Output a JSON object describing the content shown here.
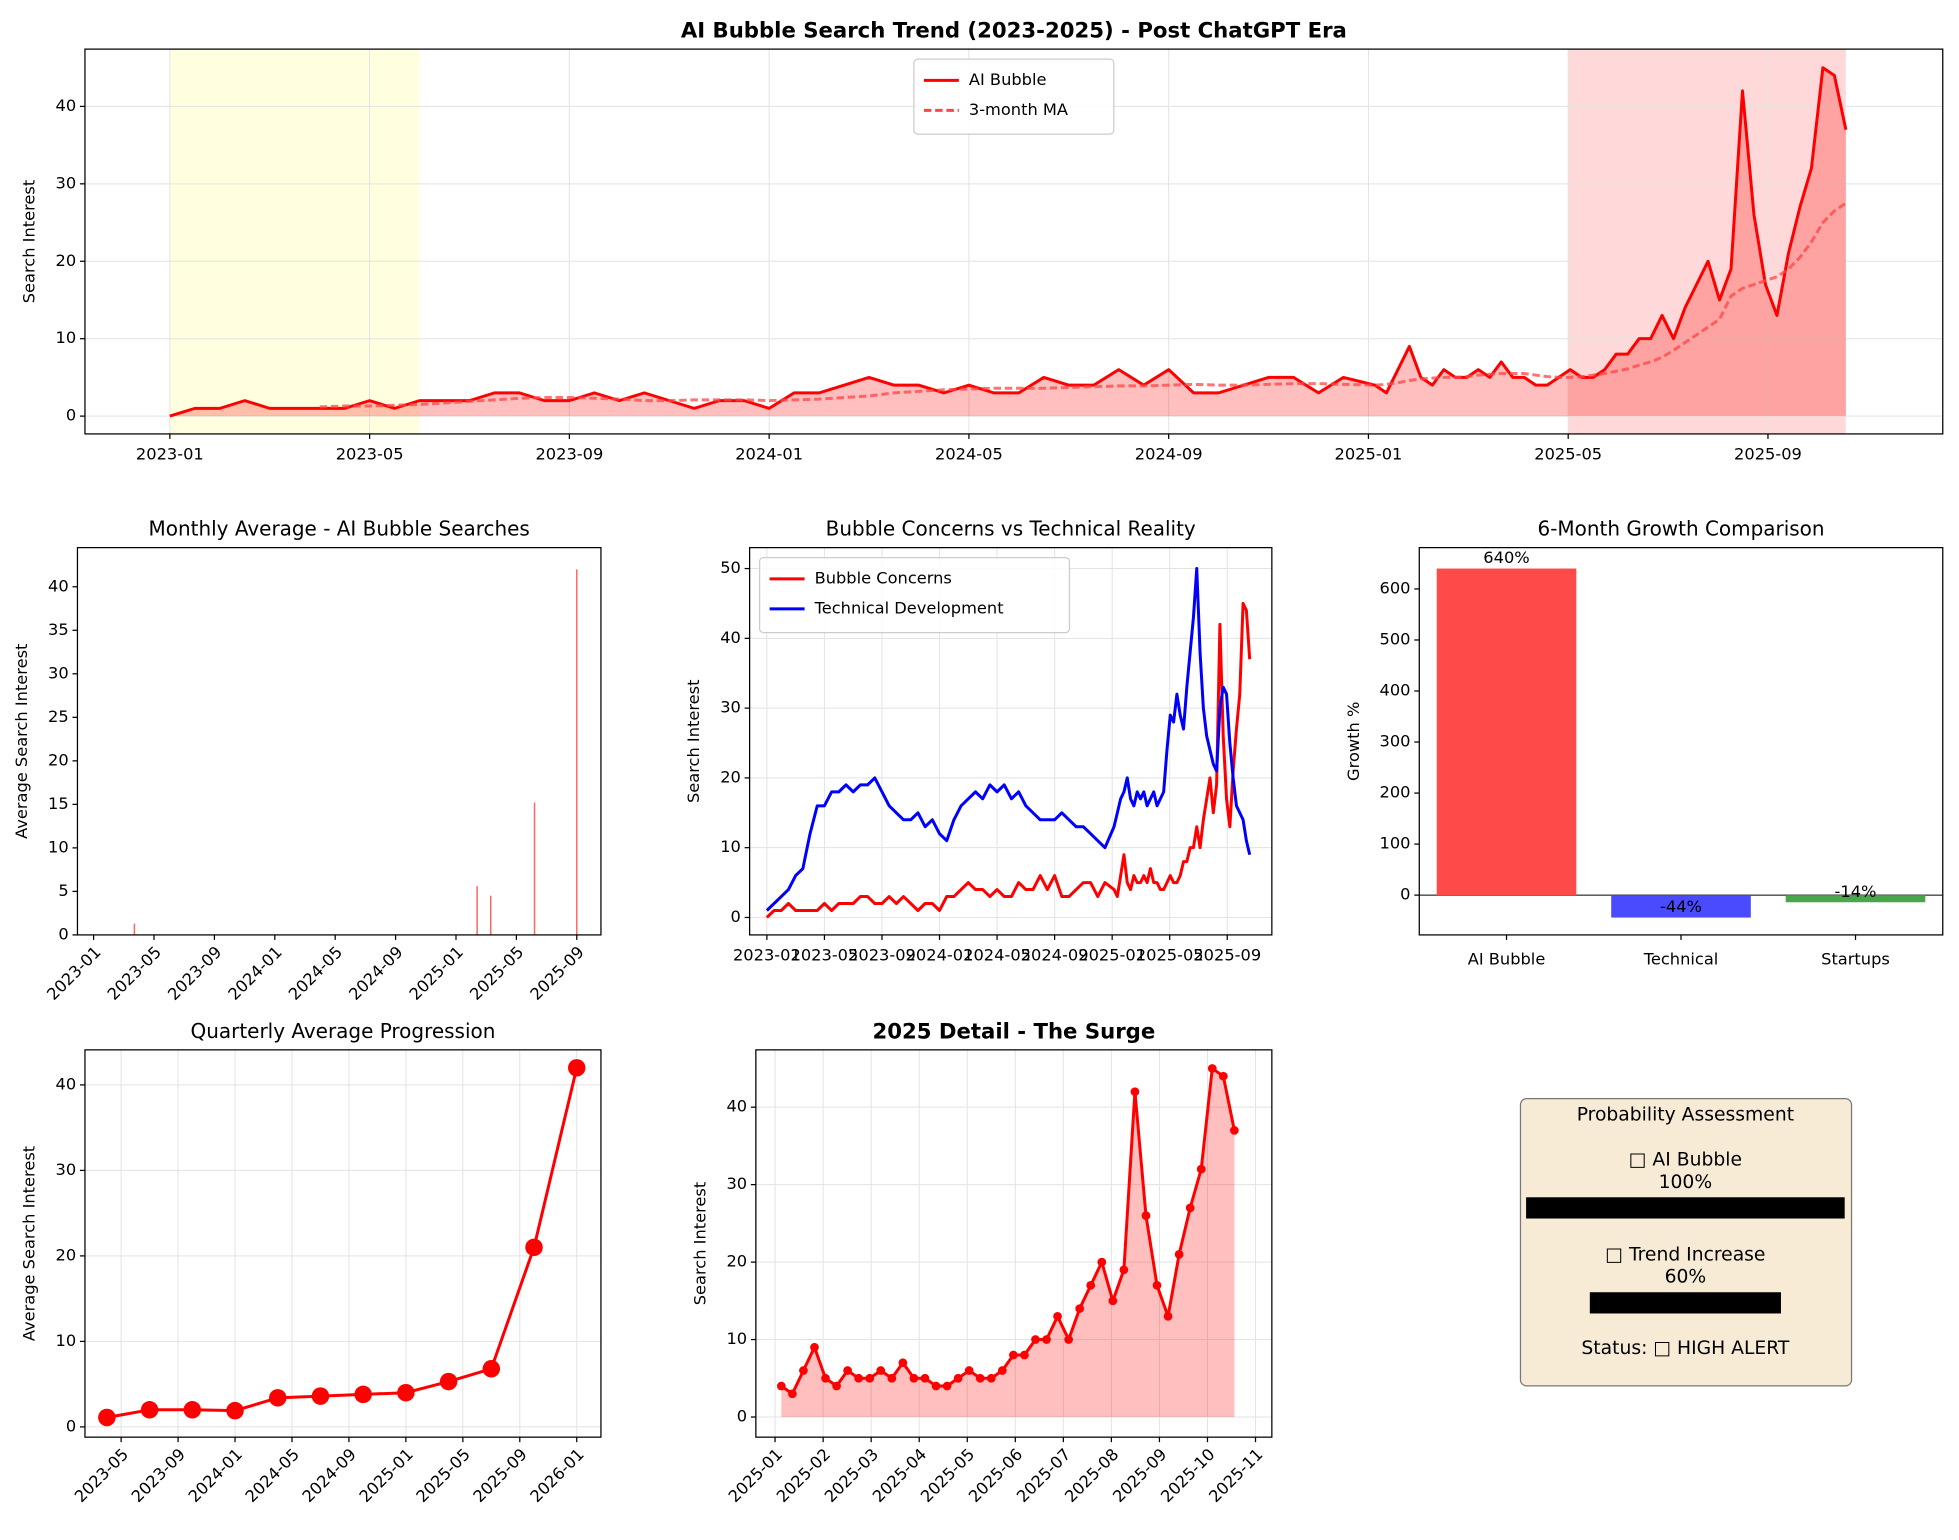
{
  "chart_data": [
    {
      "type": "line",
      "title": "AI Bubble Search Trend (2023-2025) - Post ChatGPT Era",
      "title_bold": true,
      "ylabel": "Search Interest",
      "x": [
        0,
        0.5,
        1,
        1.5,
        2,
        2.5,
        3,
        3.5,
        4,
        4.5,
        5,
        5.5,
        6,
        6.5,
        7,
        7.5,
        8,
        8.5,
        9,
        9.5,
        10,
        10.5,
        11,
        11.5,
        12,
        12.5,
        13,
        13.5,
        14,
        14.5,
        15,
        15.5,
        16,
        16.5,
        17,
        17.5,
        18,
        18.5,
        19,
        19.5,
        20,
        20.5,
        21,
        21.5,
        22,
        22.5,
        23,
        23.5,
        24.13,
        24.36,
        24.59,
        24.82,
        25.05,
        25.28,
        25.51,
        25.74,
        25.97,
        26.2,
        26.43,
        26.66,
        26.89,
        27.12,
        27.35,
        27.58,
        27.81,
        28.04,
        28.27,
        28.5,
        28.73,
        28.96,
        29.19,
        29.42,
        29.65,
        29.88,
        30.11,
        30.34,
        30.57,
        30.8,
        31.03,
        31.26,
        31.49,
        31.72,
        31.95,
        32.18,
        32.41,
        32.64,
        32.87,
        33.1,
        33.33,
        33.56
      ],
      "xlim": [
        -1.7,
        35.5
      ],
      "xticks": [
        {
          "value": 0,
          "label": "2023-01"
        },
        {
          "value": 4,
          "label": "2023-05"
        },
        {
          "value": 8,
          "label": "2023-09"
        },
        {
          "value": 12,
          "label": "2024-01"
        },
        {
          "value": 16,
          "label": "2024-05"
        },
        {
          "value": 20,
          "label": "2024-09"
        },
        {
          "value": 24,
          "label": "2025-01"
        },
        {
          "value": 28,
          "label": "2025-05"
        },
        {
          "value": 32,
          "label": "2025-09"
        }
      ],
      "ylim": [
        -2.3,
        47.4
      ],
      "yticks": [
        0,
        10,
        20,
        30,
        40
      ],
      "grid": true,
      "legend": "upper center",
      "highlights": [
        {
          "start": 0,
          "end": 5,
          "color": "#ffffe0"
        },
        {
          "start": 28,
          "end": 33.56,
          "color": "#ffd9d9"
        }
      ],
      "series": [
        {
          "name": "AI Bubble",
          "color": "#ff0000",
          "fill": true,
          "values": [
            0,
            1,
            1,
            2,
            1,
            1,
            1,
            1,
            2,
            1,
            2,
            2,
            2,
            3,
            3,
            2,
            2,
            3,
            2,
            3,
            2,
            1,
            2,
            2,
            1,
            3,
            3,
            4,
            5,
            4,
            4,
            3,
            4,
            3,
            3,
            5,
            4,
            4,
            6,
            4,
            6,
            3,
            3,
            4,
            5,
            5,
            3,
            5,
            4,
            3,
            6,
            9,
            5,
            4,
            6,
            5,
            5,
            6,
            5,
            7,
            5,
            5,
            4,
            4,
            5,
            6,
            5,
            5,
            6,
            8,
            8,
            10,
            10,
            13,
            10,
            14,
            17,
            20,
            15,
            19,
            42,
            26,
            17,
            13,
            21,
            27,
            32,
            45,
            44,
            37
          ]
        },
        {
          "name": "3-month MA",
          "color": "#ff4444",
          "dash": true,
          "values": [
            null,
            null,
            null,
            null,
            null,
            null,
            1.2,
            1.3,
            1.3,
            1.4,
            1.5,
            1.7,
            1.9,
            2.1,
            2.3,
            2.4,
            2.4,
            2.3,
            2.2,
            2.0,
            2.0,
            2.1,
            2.1,
            2.1,
            2.0,
            2.1,
            2.2,
            2.4,
            2.6,
            3.0,
            3.2,
            3.4,
            3.5,
            3.6,
            3.6,
            3.6,
            3.7,
            3.8,
            3.9,
            3.9,
            4.0,
            4.1,
            4.0,
            4.0,
            4.1,
            4.2,
            4.2,
            4.1,
            4.0,
            4.1,
            4.3,
            4.6,
            4.8,
            4.9,
            5.0,
            5.0,
            5.1,
            5.3,
            5.4,
            5.5,
            5.5,
            5.5,
            5.3,
            5.1,
            5.0,
            5.0,
            5.1,
            5.3,
            5.5,
            5.8,
            6.1,
            6.6,
            7.0,
            7.6,
            8.5,
            9.5,
            10.5,
            11.5,
            12.5,
            15.5,
            16.5,
            17.0,
            17.5,
            18.0,
            19.0,
            20.5,
            22.5,
            25.0,
            26.5,
            27.5
          ]
        }
      ]
    },
    {
      "type": "bar",
      "title": "Monthly Average - AI Bubble Searches",
      "ylabel": "Average Search Interest",
      "x": [
        2.7,
        25.4,
        26.3,
        29.2,
        32
      ],
      "values": [
        1.3,
        5.6,
        4.5,
        15.2,
        42
      ],
      "color": "#ff6666",
      "xlim": [
        -1.07,
        33.6
      ],
      "xticks": [
        {
          "value": 0,
          "label": "2023-01"
        },
        {
          "value": 4,
          "label": "2023-05"
        },
        {
          "value": 8,
          "label": "2023-09"
        },
        {
          "value": 12,
          "label": "2024-01"
        },
        {
          "value": 16,
          "label": "2024-05"
        },
        {
          "value": 20,
          "label": "2024-09"
        },
        {
          "value": 24,
          "label": "2025-01"
        },
        {
          "value": 28,
          "label": "2025-05"
        },
        {
          "value": 32,
          "label": "2025-09"
        }
      ],
      "rotate_xticks": 45,
      "ylim": [
        0,
        44.5
      ],
      "yticks": [
        0,
        5,
        10,
        15,
        20,
        25,
        30,
        35,
        40
      ],
      "grid": false
    },
    {
      "type": "line",
      "title": "Bubble Concerns vs Technical Reality",
      "ylabel": "Search Interest",
      "x": [
        0,
        0.5,
        1,
        1.5,
        2,
        2.5,
        3,
        3.5,
        4,
        4.5,
        5,
        5.5,
        6,
        6.5,
        7,
        7.5,
        8,
        8.5,
        9,
        9.5,
        10,
        10.5,
        11,
        11.5,
        12,
        12.5,
        13,
        13.5,
        14,
        14.5,
        15,
        15.5,
        16,
        16.5,
        17,
        17.5,
        18,
        18.5,
        19,
        19.5,
        20,
        20.5,
        21,
        21.5,
        22,
        22.5,
        23,
        23.5,
        24.13,
        24.36,
        24.59,
        24.82,
        25.05,
        25.28,
        25.51,
        25.74,
        25.97,
        26.2,
        26.43,
        26.66,
        26.89,
        27.12,
        27.35,
        27.58,
        27.81,
        28.04,
        28.27,
        28.5,
        28.73,
        28.96,
        29.19,
        29.42,
        29.65,
        29.88,
        30.11,
        30.34,
        30.57,
        30.8,
        31.03,
        31.26,
        31.49,
        31.72,
        31.95,
        32.18,
        32.41,
        32.64,
        32.87,
        33.1,
        33.33,
        33.56
      ],
      "xlim": [
        -1.2,
        35.1
      ],
      "xticks": [
        {
          "value": 0,
          "label": "2023-01"
        },
        {
          "value": 4,
          "label": "2023-05"
        },
        {
          "value": 8,
          "label": "2023-09"
        },
        {
          "value": 12,
          "label": "2024-01"
        },
        {
          "value": 16,
          "label": "2024-05"
        },
        {
          "value": 20,
          "label": "2024-09"
        },
        {
          "value": 24,
          "label": "2025-01"
        },
        {
          "value": 28,
          "label": "2025-05"
        },
        {
          "value": 32,
          "label": "2025-09"
        }
      ],
      "ylim": [
        -2.5,
        53
      ],
      "yticks": [
        0,
        10,
        20,
        30,
        40,
        50
      ],
      "grid": true,
      "legend": "upper left",
      "series": [
        {
          "name": "Bubble Concerns",
          "color": "#ff0000",
          "values": [
            0,
            1,
            1,
            2,
            1,
            1,
            1,
            1,
            2,
            1,
            2,
            2,
            2,
            3,
            3,
            2,
            2,
            3,
            2,
            3,
            2,
            1,
            2,
            2,
            1,
            3,
            3,
            4,
            5,
            4,
            4,
            3,
            4,
            3,
            3,
            5,
            4,
            4,
            6,
            4,
            6,
            3,
            3,
            4,
            5,
            5,
            3,
            5,
            4,
            3,
            6,
            9,
            5,
            4,
            6,
            5,
            5,
            6,
            5,
            7,
            5,
            5,
            4,
            4,
            5,
            6,
            5,
            5,
            6,
            8,
            8,
            10,
            10,
            13,
            10,
            14,
            17,
            20,
            15,
            19,
            42,
            26,
            17,
            13,
            21,
            27,
            32,
            45,
            44,
            37
          ]
        },
        {
          "name": "Technical Development",
          "color": "#0000ff",
          "values": [
            1,
            2,
            3,
            4,
            6,
            7,
            12,
            16,
            16,
            18,
            18,
            19,
            18,
            19,
            19,
            20,
            18,
            16,
            15,
            14,
            14,
            15,
            13,
            14,
            12,
            11,
            14,
            16,
            17,
            18,
            17,
            19,
            18,
            19,
            17,
            18,
            16,
            15,
            14,
            14,
            14,
            15,
            14,
            13,
            13,
            12,
            11,
            10,
            13,
            15,
            17,
            18,
            20,
            17,
            16,
            18,
            17,
            18,
            16,
            17,
            18,
            16,
            17,
            18,
            24,
            29,
            28,
            32,
            29,
            27,
            33,
            38,
            43,
            50,
            38,
            30,
            26,
            24,
            22,
            21,
            30,
            33,
            32,
            25,
            20,
            16,
            15,
            14,
            11,
            9
          ]
        }
      ]
    },
    {
      "type": "bar",
      "title": "6-Month Growth Comparison",
      "ylabel": "Growth %",
      "categories": [
        "AI Bubble",
        "Technical",
        "Startups"
      ],
      "values": [
        640,
        -44,
        -14
      ],
      "value_labels": [
        "640%",
        "-44%",
        "-14%"
      ],
      "colors": [
        "#ff4a4a",
        "#4a4aff",
        "#4aa64a"
      ],
      "ylim": [
        -78,
        681
      ],
      "yticks": [
        0,
        100,
        200,
        300,
        400,
        500,
        600
      ],
      "grid": false
    },
    {
      "type": "line",
      "title": "Quarterly Average Progression",
      "ylabel": "Average Search Interest",
      "x": [
        3,
        6,
        9,
        12,
        15,
        18,
        21,
        24,
        27,
        30,
        33,
        36
      ],
      "xlim": [
        1.46,
        37.7
      ],
      "xticks": [
        {
          "value": 4,
          "label": "2023-05"
        },
        {
          "value": 8,
          "label": "2023-09"
        },
        {
          "value": 12,
          "label": "2024-01"
        },
        {
          "value": 16,
          "label": "2024-05"
        },
        {
          "value": 20,
          "label": "2024-09"
        },
        {
          "value": 24,
          "label": "2025-01"
        },
        {
          "value": 28,
          "label": "2025-05"
        },
        {
          "value": 32,
          "label": "2025-09"
        },
        {
          "value": 36,
          "label": "2026-01"
        }
      ],
      "rotate_xticks": 45,
      "ylim": [
        -1.2,
        44.1
      ],
      "yticks": [
        0,
        10,
        20,
        30,
        40
      ],
      "grid": true,
      "marker_size": 7,
      "series": [
        {
          "color": "#ff0000",
          "values": [
            1.1,
            2.0,
            2.0,
            1.9,
            3.4,
            3.6,
            3.8,
            4.0,
            5.3,
            6.8,
            21,
            42
          ]
        }
      ]
    },
    {
      "type": "line",
      "title": "2025 Detail - The Surge",
      "title_bold": true,
      "ylabel": "Search Interest",
      "x": [
        24.13,
        24.36,
        24.59,
        24.82,
        25.05,
        25.28,
        25.51,
        25.74,
        25.97,
        26.2,
        26.43,
        26.66,
        26.89,
        27.12,
        27.35,
        27.58,
        27.81,
        28.04,
        28.27,
        28.5,
        28.73,
        28.96,
        29.19,
        29.42,
        29.65,
        29.88,
        30.11,
        30.34,
        30.57,
        30.8,
        31.03,
        31.26,
        31.49,
        31.72,
        31.95,
        32.18,
        32.41,
        32.64,
        32.87,
        33.1,
        33.33,
        33.56
      ],
      "xlim": [
        23.6,
        34.34
      ],
      "xticks": [
        {
          "value": 24,
          "label": "2025-01"
        },
        {
          "value": 25,
          "label": "2025-02"
        },
        {
          "value": 26,
          "label": "2025-03"
        },
        {
          "value": 27,
          "label": "2025-04"
        },
        {
          "value": 28,
          "label": "2025-05"
        },
        {
          "value": 29,
          "label": "2025-06"
        },
        {
          "value": 30,
          "label": "2025-07"
        },
        {
          "value": 31,
          "label": "2025-08"
        },
        {
          "value": 32,
          "label": "2025-09"
        },
        {
          "value": 33,
          "label": "2025-10"
        },
        {
          "value": 34,
          "label": "2025-11"
        }
      ],
      "rotate_xticks": 45,
      "ylim": [
        -2.6,
        47.4
      ],
      "yticks": [
        0,
        10,
        20,
        30,
        40
      ],
      "grid": true,
      "marker_size": 3.5,
      "series": [
        {
          "color": "#ff0000",
          "fill": true,
          "values": [
            4,
            3,
            6,
            9,
            5,
            4,
            6,
            5,
            5,
            6,
            5,
            7,
            5,
            5,
            4,
            4,
            5,
            6,
            5,
            5,
            6,
            8,
            8,
            10,
            10,
            13,
            10,
            14,
            17,
            20,
            15,
            19,
            42,
            26,
            17,
            13,
            21,
            27,
            32,
            45,
            44,
            37
          ]
        }
      ]
    }
  ],
  "assessment": {
    "title": "Probability Assessment",
    "items": [
      {
        "label": "□ AI Bubble",
        "value": 100,
        "value_label": "100%"
      },
      {
        "label": "□ Trend Increase",
        "value": 60,
        "value_label": "60%"
      }
    ],
    "status": "Status: □ HIGH ALERT"
  }
}
